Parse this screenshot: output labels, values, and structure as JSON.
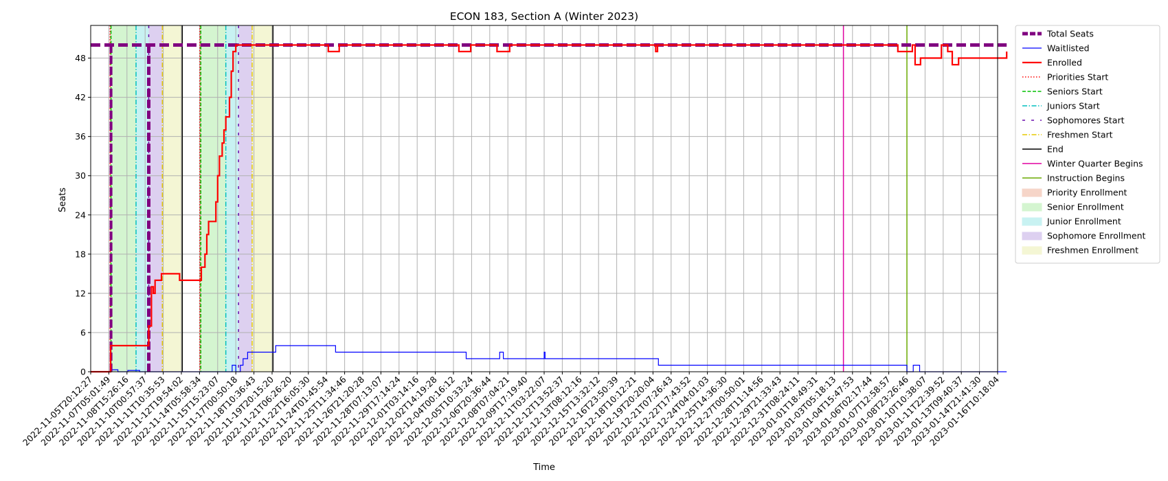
{
  "chart_data": {
    "type": "line",
    "title": "ECON 183, Section A (Winter 2023)",
    "xlabel": "Time",
    "ylabel": "Seats",
    "ylim": [
      0,
      53
    ],
    "yticks": [
      0,
      6,
      12,
      18,
      24,
      30,
      36,
      42,
      48
    ],
    "grid": true,
    "legend_position": "outside-right",
    "colors": {
      "total": "#800080",
      "waitlisted": "#0000ff",
      "enrolled": "#ff0000",
      "priority_line": "#ff0000",
      "senior_line": "#00c000",
      "junior_line": "#00bfbf",
      "sophomore_line": "#6a0dad",
      "freshmen_line": "#e6c800",
      "end_line": "#000000",
      "quarter_line": "#e000a0",
      "instruction_line": "#6aaa00",
      "priority_fill": "#f6d5c8",
      "senior_fill": "#d4f5d0",
      "junior_fill": "#c8f2f2",
      "sophomore_fill": "#ddd0f0",
      "freshmen_fill": "#f4f6d4"
    },
    "x_ticks": [
      "2022-11-05T20:12:27",
      "2022-11-07T05:01:49",
      "2022-11-08T15:26:16",
      "2022-11-10T00:57:37",
      "2022-11-11T10:35:53",
      "2022-11-12T19:54:02",
      "2022-11-14T05:58:34",
      "2022-11-15T15:23:07",
      "2022-11-17T00:50:18",
      "2022-11-18T10:36:43",
      "2022-11-19T20:15:20",
      "2022-11-21T06:26:20",
      "2022-11-22T16:05:30",
      "2022-11-24T01:45:54",
      "2022-11-25T11:34:46",
      "2022-11-26T21:20:28",
      "2022-11-28T07:13:07",
      "2022-11-29T17:14:24",
      "2022-12-01T03:14:16",
      "2022-12-02T14:19:28",
      "2022-12-04T00:16:12",
      "2022-12-05T10:33:24",
      "2022-12-06T20:36:44",
      "2022-12-08T07:04:21",
      "2022-12-09T17:19:40",
      "2022-12-11T03:22:07",
      "2022-12-12T13:52:37",
      "2022-12-13T08:12:16",
      "2022-12-15T13:32:12",
      "2022-12-16T23:50:39",
      "2022-12-18T10:12:21",
      "2022-12-19T20:20:04",
      "2022-12-21T07:26:43",
      "2022-12-22T17:43:52",
      "2022-12-24T04:01:03",
      "2022-12-25T14:36:30",
      "2022-12-27T00:50:01",
      "2022-12-28T11:14:56",
      "2022-12-29T21:33:43",
      "2022-12-31T08:24:11",
      "2023-01-01T18:49:31",
      "2023-01-03T05:18:13",
      "2023-01-04T15:47:53",
      "2023-01-06T02:17:44",
      "2023-01-07T12:58:57",
      "2023-01-08T23:26:46",
      "2023-01-10T10:38:07",
      "2023-01-11T22:39:52",
      "2023-01-13T09:40:37",
      "2023-01-14T21:41:30",
      "2023-01-16T10:18:04"
    ],
    "total_seats": [
      [
        0,
        50
      ],
      [
        50.5,
        50
      ]
    ],
    "series": [
      {
        "name": "Enrolled",
        "points": [
          [
            0,
            0
          ],
          [
            1.1,
            0
          ],
          [
            1.1,
            4
          ],
          [
            3.2,
            4
          ],
          [
            3.2,
            7
          ],
          [
            3.35,
            7
          ],
          [
            3.35,
            13
          ],
          [
            3.45,
            13
          ],
          [
            3.45,
            12
          ],
          [
            3.55,
            12
          ],
          [
            3.55,
            14
          ],
          [
            3.9,
            14
          ],
          [
            3.9,
            15
          ],
          [
            4.9,
            15
          ],
          [
            4.9,
            14
          ],
          [
            6.1,
            14
          ],
          [
            6.1,
            16
          ],
          [
            6.3,
            16
          ],
          [
            6.3,
            18
          ],
          [
            6.4,
            18
          ],
          [
            6.4,
            21
          ],
          [
            6.5,
            21
          ],
          [
            6.5,
            23
          ],
          [
            6.9,
            23
          ],
          [
            6.9,
            26
          ],
          [
            7.0,
            26
          ],
          [
            7.0,
            30
          ],
          [
            7.1,
            30
          ],
          [
            7.1,
            33
          ],
          [
            7.25,
            33
          ],
          [
            7.25,
            35
          ],
          [
            7.35,
            35
          ],
          [
            7.35,
            37
          ],
          [
            7.45,
            37
          ],
          [
            7.45,
            39
          ],
          [
            7.65,
            39
          ],
          [
            7.65,
            42
          ],
          [
            7.75,
            42
          ],
          [
            7.75,
            46
          ],
          [
            7.85,
            46
          ],
          [
            7.85,
            49
          ],
          [
            8.0,
            49
          ],
          [
            8.0,
            50
          ],
          [
            13.1,
            50
          ],
          [
            13.1,
            49
          ],
          [
            13.7,
            49
          ],
          [
            13.7,
            50
          ],
          [
            20.3,
            50
          ],
          [
            20.3,
            49
          ],
          [
            20.95,
            49
          ],
          [
            20.95,
            50
          ],
          [
            22.4,
            50
          ],
          [
            22.4,
            49
          ],
          [
            23.1,
            49
          ],
          [
            23.1,
            50
          ],
          [
            31.15,
            50
          ],
          [
            31.15,
            49
          ],
          [
            31.25,
            49
          ],
          [
            31.25,
            50
          ],
          [
            44.5,
            50
          ],
          [
            44.5,
            49
          ],
          [
            45.3,
            49
          ],
          [
            45.3,
            50
          ],
          [
            45.45,
            50
          ],
          [
            45.45,
            47
          ],
          [
            45.75,
            47
          ],
          [
            45.75,
            48
          ],
          [
            46.9,
            48
          ],
          [
            46.9,
            50
          ],
          [
            47.25,
            50
          ],
          [
            47.25,
            49
          ],
          [
            47.5,
            49
          ],
          [
            47.5,
            47
          ],
          [
            47.85,
            47
          ],
          [
            47.85,
            48
          ],
          [
            50.5,
            48
          ],
          [
            50.5,
            49
          ]
        ]
      },
      {
        "name": "Waitlisted",
        "points": [
          [
            0,
            0
          ],
          [
            1.1,
            0
          ],
          [
            1.1,
            0.3
          ],
          [
            1.5,
            0.3
          ],
          [
            1.5,
            0
          ],
          [
            2.05,
            0
          ],
          [
            2.05,
            0.2
          ],
          [
            2.7,
            0.2
          ],
          [
            2.7,
            0
          ],
          [
            7.8,
            0
          ],
          [
            7.8,
            1
          ],
          [
            8.0,
            1
          ],
          [
            8.0,
            0
          ],
          [
            8.25,
            0
          ],
          [
            8.25,
            1
          ],
          [
            8.4,
            1
          ],
          [
            8.4,
            2
          ],
          [
            8.65,
            2
          ],
          [
            8.65,
            3
          ],
          [
            10.2,
            3
          ],
          [
            10.2,
            4
          ],
          [
            13.5,
            4
          ],
          [
            13.5,
            3
          ],
          [
            20.7,
            3
          ],
          [
            20.7,
            2
          ],
          [
            22.55,
            2
          ],
          [
            22.55,
            3
          ],
          [
            22.75,
            3
          ],
          [
            22.75,
            2
          ],
          [
            25.0,
            2
          ],
          [
            25.0,
            3
          ],
          [
            25.05,
            3
          ],
          [
            25.05,
            2
          ],
          [
            31.3,
            2
          ],
          [
            31.3,
            1
          ],
          [
            45.0,
            1
          ],
          [
            45.0,
            0
          ],
          [
            45.35,
            0
          ],
          [
            45.35,
            1
          ],
          [
            45.7,
            1
          ],
          [
            45.7,
            0
          ],
          [
            50.5,
            0
          ]
        ]
      }
    ],
    "phases": [
      {
        "name": "Priority Enrollment",
        "spans": [
          [
            1.05,
            1.12
          ],
          [
            6.0,
            6.07
          ]
        ]
      },
      {
        "name": "Senior Enrollment",
        "spans": [
          [
            1.12,
            2.5
          ],
          [
            6.07,
            7.45
          ]
        ]
      },
      {
        "name": "Junior Enrollment",
        "spans": [
          [
            2.5,
            3.2
          ],
          [
            7.45,
            8.15
          ]
        ]
      },
      {
        "name": "Sophomore Enrollment",
        "spans": [
          [
            3.2,
            3.95
          ],
          [
            8.15,
            8.9
          ]
        ]
      },
      {
        "name": "Freshmen Enrollment",
        "spans": [
          [
            3.95,
            5.05
          ],
          [
            8.9,
            10.05
          ]
        ]
      }
    ],
    "vlines": [
      {
        "name": "Priorities Start",
        "x": [
          1.07,
          6.02
        ],
        "style": "dotted",
        "color_key": "priority_line"
      },
      {
        "name": "Seniors Start",
        "x": [
          1.12,
          6.07
        ],
        "style": "dashed",
        "color_key": "senior_line"
      },
      {
        "name": "Juniors Start",
        "x": [
          2.5,
          7.45
        ],
        "style": "dashdot",
        "color_key": "junior_line"
      },
      {
        "name": "Sophomores Start",
        "x": [
          3.2,
          8.15
        ],
        "style": "loosedash",
        "color_key": "sophomore_line"
      },
      {
        "name": "Freshmen Start",
        "x": [
          3.95,
          8.9
        ],
        "style": "dashdot",
        "color_key": "freshmen_line"
      },
      {
        "name": "End",
        "x": [
          5.05,
          10.05
        ],
        "style": "solid",
        "color_key": "end_line"
      },
      {
        "name": "Winter Quarter Begins",
        "x": [
          41.5
        ],
        "style": "solid",
        "color_key": "quarter_line"
      },
      {
        "name": "Instruction Begins",
        "x": [
          45.0
        ],
        "style": "solid",
        "color_key": "instruction_line"
      }
    ],
    "legend": [
      {
        "label": "Total Seats",
        "kind": "line",
        "style": "dashed-thick",
        "color_key": "total"
      },
      {
        "label": "Waitlisted",
        "kind": "line",
        "style": "solid-thin",
        "color_key": "waitlisted"
      },
      {
        "label": "Enrolled",
        "kind": "line",
        "style": "solid-thick",
        "color_key": "enrolled"
      },
      {
        "label": "Priorities Start",
        "kind": "line",
        "style": "dotted",
        "color_key": "priority_line"
      },
      {
        "label": "Seniors Start",
        "kind": "line",
        "style": "dashed",
        "color_key": "senior_line"
      },
      {
        "label": "Juniors Start",
        "kind": "line",
        "style": "dashdot",
        "color_key": "junior_line"
      },
      {
        "label": "Sophomores Start",
        "kind": "line",
        "style": "loosedash",
        "color_key": "sophomore_line"
      },
      {
        "label": "Freshmen Start",
        "kind": "line",
        "style": "dashdot",
        "color_key": "freshmen_line"
      },
      {
        "label": "End",
        "kind": "line",
        "style": "solid",
        "color_key": "end_line"
      },
      {
        "label": "Winter Quarter Begins",
        "kind": "line",
        "style": "solid",
        "color_key": "quarter_line"
      },
      {
        "label": "Instruction Begins",
        "kind": "line",
        "style": "solid",
        "color_key": "instruction_line"
      },
      {
        "label": "Priority Enrollment",
        "kind": "patch",
        "color_key": "priority_fill"
      },
      {
        "label": "Senior Enrollment",
        "kind": "patch",
        "color_key": "senior_fill"
      },
      {
        "label": "Junior Enrollment",
        "kind": "patch",
        "color_key": "junior_fill"
      },
      {
        "label": "Sophomore Enrollment",
        "kind": "patch",
        "color_key": "sophomore_fill"
      },
      {
        "label": "Freshmen Enrollment",
        "kind": "patch",
        "color_key": "freshmen_fill"
      }
    ]
  }
}
